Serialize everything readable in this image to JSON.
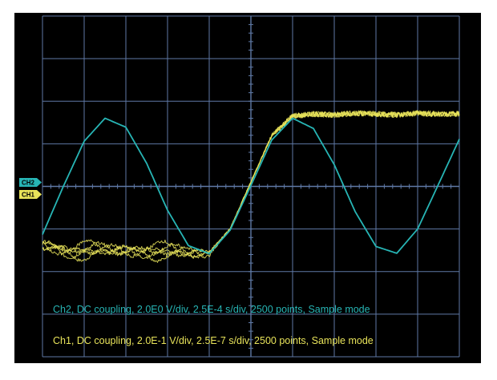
{
  "chart_data": {
    "type": "line",
    "grid": true,
    "divisions": {
      "horizontal": 10,
      "vertical": 8
    },
    "colors": {
      "screen_bg": "#000000",
      "grid": "#5f79a6",
      "ch1": "#e8e35a",
      "ch2": "#27b5b5"
    },
    "channels": [
      {
        "id": "ch2",
        "marker_label": "CH2",
        "waveform": "sine",
        "info": "Ch2, DC coupling, 2.0E0 V/div, 2.5E-4 s/div, 2500 points, Sample mode",
        "x_div": [
          0.0,
          0.5,
          1.0,
          1.5,
          2.0,
          2.5,
          3.0,
          3.5,
          4.0,
          4.5,
          5.0,
          5.5,
          6.0,
          6.5,
          7.0,
          7.5,
          8.0,
          8.5,
          9.0,
          9.5,
          10.0
        ],
        "y_div": [
          -1.13,
          -0.0,
          1.06,
          1.6,
          1.39,
          0.54,
          -0.56,
          -1.39,
          -1.58,
          -1.03,
          0.02,
          1.09,
          1.6,
          1.36,
          0.51,
          -0.59,
          -1.41,
          -1.57,
          -1.0,
          0.05,
          1.11
        ]
      },
      {
        "id": "ch1",
        "marker_label": "CH1",
        "waveform": "step",
        "info": "Ch1, DC coupling, 2.0E-1 V/div, 2.5E-7 s/div, 2500 points, Sample mode",
        "x_div": [
          0.0,
          0.5,
          1.0,
          1.5,
          2.0,
          2.5,
          3.0,
          3.5,
          4.0,
          4.5,
          5.0,
          5.5,
          6.0,
          6.5,
          7.0,
          7.5,
          8.0,
          8.5,
          9.0,
          9.5,
          10.0
        ],
        "y_div": [
          -1.4,
          -1.45,
          -1.5,
          -1.55,
          -1.5,
          -1.45,
          -1.55,
          -1.6,
          -1.55,
          -1.0,
          0.1,
          1.2,
          1.65,
          1.7,
          1.68,
          1.72,
          1.7,
          1.68,
          1.72,
          1.7,
          1.7
        ]
      }
    ]
  }
}
